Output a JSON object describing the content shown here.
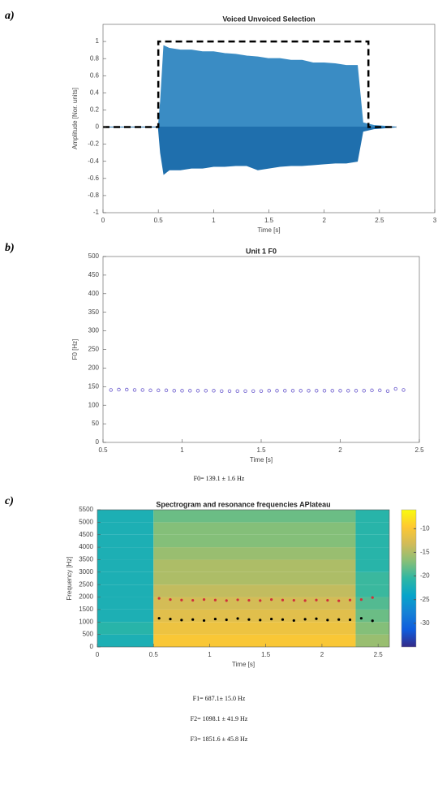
{
  "chart_data": [
    {
      "type": "line",
      "panel_label": "a)",
      "title": "Voiced Unvoiced Selection",
      "xlabel": "Time [s]",
      "ylabel": "Amplitude [Nor. units]",
      "xlim": [
        0,
        3
      ],
      "xticks": [
        0,
        0.5,
        1,
        1.5,
        2,
        2.5,
        3
      ],
      "ylim": [
        -1,
        1.2
      ],
      "yticks": [
        -1,
        -0.8,
        -0.6,
        -0.4,
        -0.2,
        0,
        0.2,
        0.4,
        0.6,
        0.8,
        1
      ],
      "series": [
        {
          "color": "#3a8cc4",
          "fill": true,
          "x": [
            0,
            0.5,
            0.52,
            0.55,
            0.6,
            0.7,
            0.8,
            0.9,
            1.0,
            1.1,
            1.2,
            1.3,
            1.4,
            1.5,
            1.6,
            1.7,
            1.8,
            1.9,
            2.0,
            2.1,
            2.2,
            2.3,
            2.35,
            2.45,
            2.65
          ],
          "values": [
            0,
            0,
            0.3,
            0.95,
            0.92,
            0.9,
            0.9,
            0.88,
            0.88,
            0.86,
            0.85,
            0.83,
            0.82,
            0.8,
            0.8,
            0.78,
            0.78,
            0.75,
            0.75,
            0.74,
            0.72,
            0.72,
            0.05,
            0.02,
            0
          ]
        },
        {
          "color": "#1f6fad",
          "fill": true,
          "x": [
            0,
            0.5,
            0.52,
            0.55,
            0.6,
            0.7,
            0.8,
            0.9,
            1.0,
            1.1,
            1.2,
            1.3,
            1.4,
            1.5,
            1.6,
            1.7,
            1.8,
            1.9,
            2.0,
            2.1,
            2.2,
            2.3,
            2.35,
            2.45,
            2.65
          ],
          "values": [
            0,
            0,
            -0.3,
            -0.55,
            -0.5,
            -0.5,
            -0.48,
            -0.48,
            -0.46,
            -0.46,
            -0.45,
            -0.45,
            -0.5,
            -0.48,
            -0.46,
            -0.45,
            -0.45,
            -0.44,
            -0.43,
            -0.42,
            -0.42,
            -0.4,
            -0.05,
            -0.02,
            0
          ]
        },
        {
          "color": "#000000",
          "line_style": "dashed",
          "x": [
            0,
            0.5,
            0.5,
            2.4,
            2.4,
            2.65
          ],
          "values": [
            0,
            0,
            1,
            1,
            0,
            0
          ]
        }
      ]
    },
    {
      "type": "scatter",
      "panel_label": "b)",
      "title": "Unit 1 F0",
      "xlabel": "Time [s]",
      "ylabel": "F0 [Hz]",
      "xlim": [
        0.5,
        2.5
      ],
      "xticks": [
        0.5,
        1,
        1.5,
        2,
        2.5
      ],
      "ylim": [
        0,
        500
      ],
      "yticks": [
        0,
        50,
        100,
        150,
        200,
        250,
        300,
        350,
        400,
        450,
        500
      ],
      "series": [
        {
          "color": "#6a5acd",
          "x": [
            0.55,
            0.6,
            0.65,
            0.7,
            0.75,
            0.8,
            0.85,
            0.9,
            0.95,
            1.0,
            1.05,
            1.1,
            1.15,
            1.2,
            1.25,
            1.3,
            1.35,
            1.4,
            1.45,
            1.5,
            1.55,
            1.6,
            1.65,
            1.7,
            1.75,
            1.8,
            1.85,
            1.9,
            1.95,
            2.0,
            2.05,
            2.1,
            2.15,
            2.2,
            2.25,
            2.3,
            2.35,
            2.4
          ],
          "values": [
            141,
            142,
            142,
            141,
            141,
            140,
            140,
            140,
            139,
            139,
            139,
            139,
            139,
            139,
            138,
            138,
            138,
            138,
            138,
            138,
            139,
            139,
            139,
            139,
            139,
            139,
            139,
            139,
            139,
            139,
            139,
            139,
            139,
            140,
            140,
            138,
            144,
            141
          ]
        }
      ],
      "caption": "F0= 139.1 ± 1.6 Hz"
    },
    {
      "type": "heatmap",
      "panel_label": "c)",
      "title": "Spectrogram and resonance frequencies APlateau",
      "xlabel": "Time [s]",
      "ylabel": "Frequency [Hz]",
      "xlim": [
        0,
        2.6
      ],
      "xticks": [
        0,
        0.5,
        1,
        1.5,
        2,
        2.5
      ],
      "ylim": [
        0,
        5500
      ],
      "yticks": [
        0,
        500,
        1000,
        1500,
        2000,
        2500,
        3000,
        3500,
        4000,
        4500,
        5000,
        5500
      ],
      "x_edges": [
        0,
        0.5,
        2.3,
        2.6
      ],
      "y_edges": [
        0,
        500,
        1000,
        1500,
        2000,
        2500,
        3000,
        3500,
        4000,
        4500,
        5000,
        5500
      ],
      "values": [
        [
          -22,
          -10,
          -16
        ],
        [
          -21,
          -11,
          -17
        ],
        [
          -22,
          -12,
          -18
        ],
        [
          -22,
          -13,
          -19
        ],
        [
          -22,
          -14,
          -20
        ],
        [
          -22,
          -15,
          -20
        ],
        [
          -22,
          -15,
          -21
        ],
        [
          -22,
          -16,
          -21
        ],
        [
          -22,
          -17,
          -21
        ],
        [
          -22,
          -17,
          -21
        ],
        [
          -22,
          -18,
          -21
        ]
      ],
      "clim": [
        -35,
        -6
      ],
      "cticks": [
        -10,
        -15,
        -20,
        -25,
        -30
      ],
      "series": [
        {
          "color": "#000000",
          "x": [
            0.55,
            0.65,
            0.75,
            0.85,
            0.95,
            1.05,
            1.15,
            1.25,
            1.35,
            1.45,
            1.55,
            1.65,
            1.75,
            1.85,
            1.95,
            2.05,
            2.15,
            2.25,
            2.35,
            2.45
          ],
          "values": [
            1150,
            1120,
            1080,
            1100,
            1060,
            1120,
            1090,
            1140,
            1100,
            1080,
            1120,
            1100,
            1060,
            1110,
            1130,
            1080,
            1100,
            1090,
            1150,
            1050
          ]
        },
        {
          "color": "#d0303a",
          "x": [
            0.55,
            0.65,
            0.75,
            0.85,
            0.95,
            1.05,
            1.15,
            1.25,
            1.35,
            1.45,
            1.55,
            1.65,
            1.75,
            1.85,
            1.95,
            2.05,
            2.15,
            2.25,
            2.35,
            2.45
          ],
          "values": [
            1950,
            1900,
            1880,
            1870,
            1900,
            1880,
            1860,
            1890,
            1870,
            1860,
            1900,
            1880,
            1870,
            1860,
            1880,
            1870,
            1850,
            1880,
            1900,
            1980
          ]
        }
      ],
      "captions": [
        "F1= 687.1± 15.0 Hz",
        "F2= 1098.1 ± 41.9 Hz",
        "F3= 1851.6 ± 45.8 Hz"
      ]
    }
  ]
}
